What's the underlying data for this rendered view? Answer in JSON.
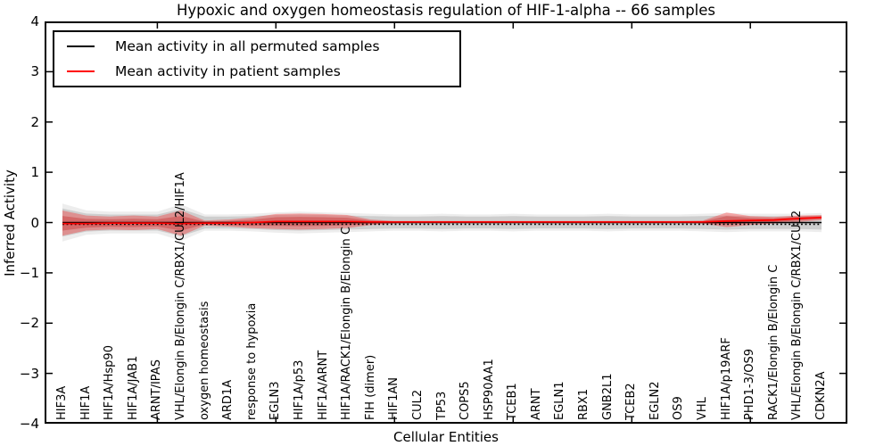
{
  "chart_data": {
    "type": "line",
    "title": "Hypoxic and oxygen homeostasis regulation of HIF-1-alpha -- 66 samples",
    "xlabel": "Cellular Entities",
    "ylabel": "Inferred Activity",
    "ylim": [
      -4,
      4
    ],
    "yticks": [
      4,
      3,
      2,
      1,
      0,
      -1,
      -2,
      -3,
      -4
    ],
    "xticks": [
      5,
      10,
      15,
      20,
      25,
      30
    ],
    "grid": false,
    "legend_position": "upper left",
    "categories": [
      "HIF3A",
      "HIF1A",
      "HIF1A/Hsp90",
      "HIF1A/JAB1",
      "ARNT/IPAS",
      "VHL/Elongin B/Elongin C/RBX1/CUL2/HIF1A",
      "oxygen homeostasis",
      "ARD1A",
      "response to hypoxia",
      "EGLN3",
      "HIF1A/p53",
      "HIF1A/ARNT",
      "HIF1A/RACK1/Elongin B/Elongin C",
      "FIH (dimer)",
      "HIF1AN",
      "CUL2",
      "TP53",
      "COPS5",
      "HSP90AA1",
      "TCEB1",
      "ARNT",
      "EGLN1",
      "RBX1",
      "GNB2L1",
      "TCEB2",
      "EGLN2",
      "OS9",
      "VHL",
      "HIF1A/p19ARF",
      "PHD1-3/OS9",
      "RACK1/Elongin B/Elongin C",
      "VHL/Elongin B/Elongin C/RBX1/CUL2",
      "CDKN2A"
    ],
    "series": [
      {
        "name": "Mean activity in all permuted samples",
        "color": "#000000",
        "band_color": "#bbbbbb",
        "values": [
          0,
          0,
          0,
          0,
          0,
          0,
          0,
          0,
          0,
          0,
          0,
          0,
          0,
          0,
          0,
          0,
          0,
          0,
          0,
          0,
          0,
          0,
          0,
          0,
          0,
          0,
          0,
          0,
          0,
          0,
          0,
          0,
          0
        ],
        "band_upper": [
          0.28,
          0.18,
          0.16,
          0.16,
          0.16,
          0.27,
          0.12,
          0.12,
          0.13,
          0.15,
          0.16,
          0.15,
          0.14,
          0.13,
          0.12,
          0.12,
          0.13,
          0.12,
          0.12,
          0.13,
          0.12,
          0.12,
          0.12,
          0.13,
          0.12,
          0.12,
          0.12,
          0.13,
          0.14,
          0.13,
          0.13,
          0.13,
          0.14
        ],
        "band_lower": [
          -0.28,
          -0.18,
          -0.16,
          -0.16,
          -0.16,
          -0.27,
          -0.12,
          -0.12,
          -0.13,
          -0.15,
          -0.16,
          -0.15,
          -0.14,
          -0.13,
          -0.12,
          -0.12,
          -0.13,
          -0.12,
          -0.12,
          -0.13,
          -0.12,
          -0.12,
          -0.12,
          -0.13,
          -0.12,
          -0.12,
          -0.12,
          -0.13,
          -0.14,
          -0.13,
          -0.13,
          -0.13,
          -0.14
        ]
      },
      {
        "name": "Mean activity in patient samples",
        "color": "#ff0000",
        "band_color": "#ff0000",
        "values": [
          -0.02,
          -0.02,
          -0.01,
          -0.01,
          -0.01,
          -0.02,
          -0.01,
          -0.01,
          0,
          0.02,
          0.02,
          0.02,
          0.02,
          0.01,
          0.01,
          0.01,
          0.01,
          0.01,
          0.01,
          0.01,
          0.01,
          0.01,
          0.01,
          0.01,
          0.01,
          0.01,
          0.01,
          0.01,
          0.03,
          0.04,
          0.05,
          0.08,
          0.1
        ],
        "band_upper": [
          0.24,
          0.14,
          0.12,
          0.14,
          0.12,
          0.24,
          0.04,
          0.06,
          0.1,
          0.17,
          0.18,
          0.17,
          0.15,
          0.06,
          0.03,
          0.03,
          0.03,
          0.03,
          0.03,
          0.03,
          0.03,
          0.03,
          0.03,
          0.03,
          0.03,
          0.03,
          0.03,
          0.04,
          0.2,
          0.13,
          0.11,
          0.14,
          0.15
        ],
        "band_lower": [
          -0.26,
          -0.16,
          -0.14,
          -0.15,
          -0.13,
          -0.26,
          -0.06,
          -0.08,
          -0.11,
          -0.13,
          -0.14,
          -0.13,
          -0.11,
          -0.05,
          -0.02,
          -0.01,
          -0.01,
          -0.01,
          -0.01,
          -0.01,
          -0.01,
          -0.01,
          -0.01,
          -0.01,
          -0.01,
          -0.01,
          -0.01,
          -0.02,
          -0.09,
          -0.05,
          -0.02,
          0.01,
          0.05
        ]
      }
    ]
  }
}
